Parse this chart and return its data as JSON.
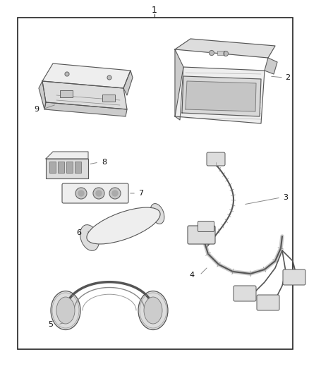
{
  "bg_color": "#ffffff",
  "border_color": "#222222",
  "text_color": "#111111",
  "figsize": [
    4.38,
    5.33
  ],
  "dpi": 100,
  "line_color": "#555555",
  "fill_light": "#eeeeee",
  "fill_mid": "#dddddd",
  "fill_dark": "#cccccc"
}
